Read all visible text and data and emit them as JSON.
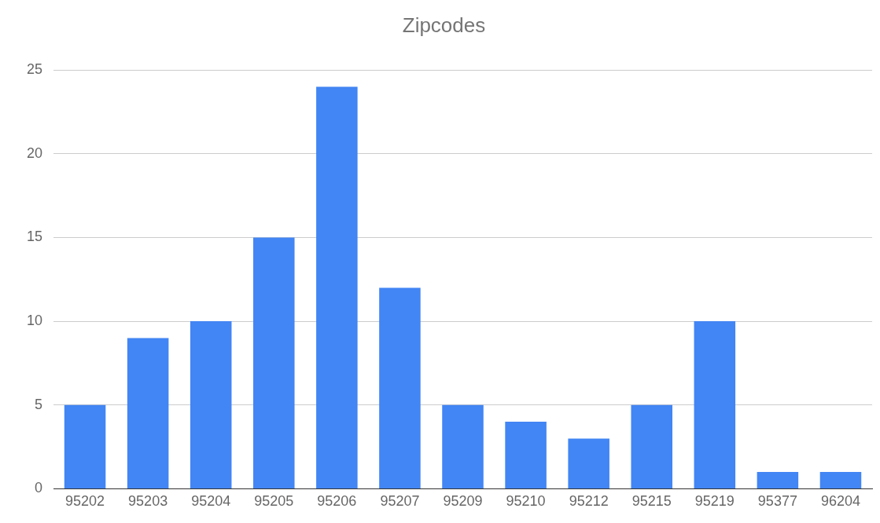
{
  "chart_data": {
    "type": "bar",
    "title": "Zipcodes",
    "categories": [
      "95202",
      "95203",
      "95204",
      "95205",
      "95206",
      "95207",
      "95209",
      "95210",
      "95212",
      "95215",
      "95219",
      "95377",
      "96204"
    ],
    "values": [
      5,
      9,
      10,
      15,
      24,
      12,
      5,
      4,
      3,
      5,
      10,
      1,
      1
    ],
    "color": "#4285f4",
    "ylim": [
      0,
      25
    ],
    "yticks": [
      0,
      5,
      10,
      15,
      20,
      25
    ],
    "grid": "y",
    "legend": false
  }
}
